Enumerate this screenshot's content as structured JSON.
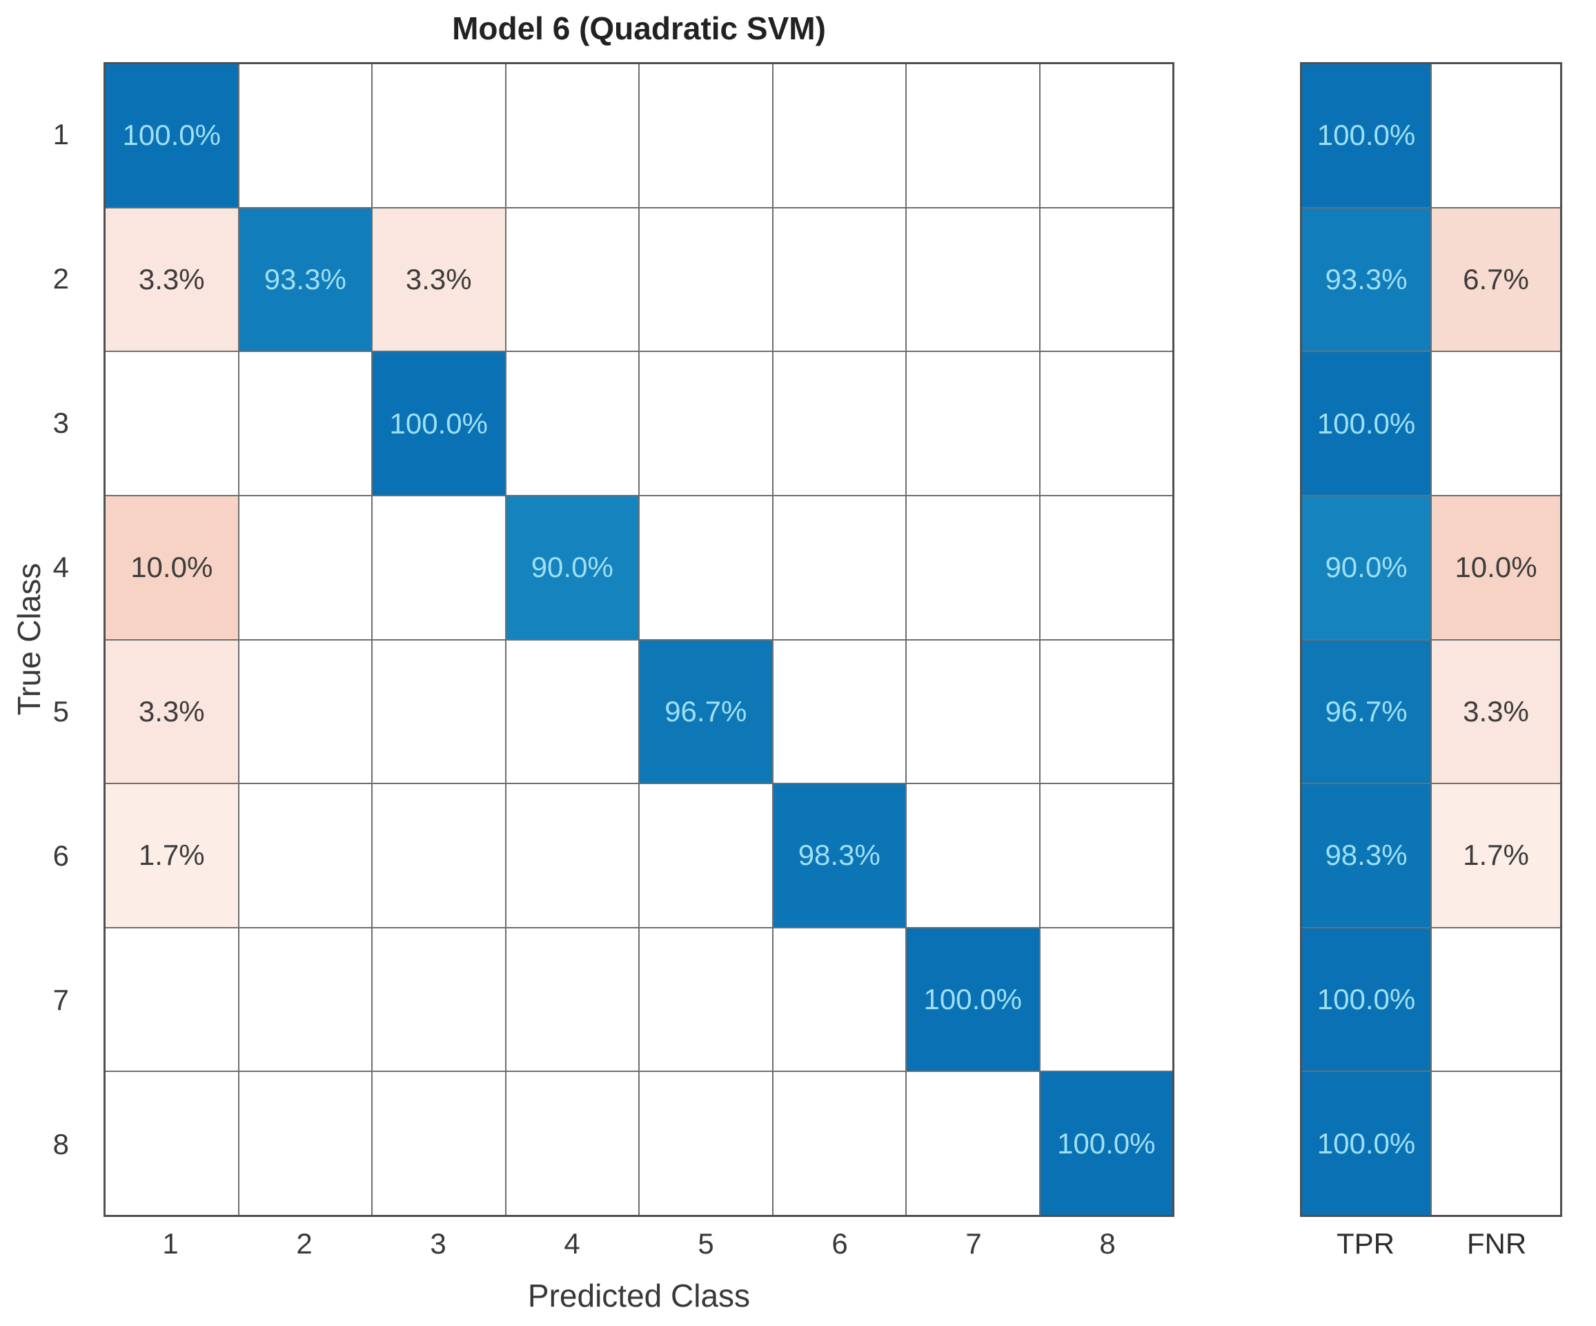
{
  "title": "Model 6 (Quadratic SVM)",
  "axes": {
    "x_label": "Predicted Class",
    "y_label": "True Class",
    "x_ticks": [
      "1",
      "2",
      "3",
      "4",
      "5",
      "6",
      "7",
      "8"
    ],
    "y_ticks": [
      "1",
      "2",
      "3",
      "4",
      "5",
      "6",
      "7",
      "8"
    ]
  },
  "summary_columns": [
    "TPR",
    "FNR"
  ],
  "colors": {
    "diagonal_blue": "#0a72b4",
    "diagonal_blue_light": "#1583bd",
    "miss_pink_strong": "#f7d3c5",
    "cell_text_on_blue": "#9fdff4",
    "cell_text_on_pink": "#3c3c3c",
    "grid_line": "#6e6e6e",
    "grid_border": "#4f4f4f",
    "axis_text": "#383838"
  },
  "chart_data": {
    "type": "heatmap",
    "title": "Model 6 (Quadratic SVM)",
    "xlabel": "Predicted Class",
    "ylabel": "True Class",
    "classes": [
      "1",
      "2",
      "3",
      "4",
      "5",
      "6",
      "7",
      "8"
    ],
    "matrix_percent": [
      [
        100.0,
        null,
        null,
        null,
        null,
        null,
        null,
        null
      ],
      [
        3.3,
        93.3,
        3.3,
        null,
        null,
        null,
        null,
        null
      ],
      [
        null,
        null,
        100.0,
        null,
        null,
        null,
        null,
        null
      ],
      [
        10.0,
        null,
        null,
        90.0,
        null,
        null,
        null,
        null
      ],
      [
        3.3,
        null,
        null,
        null,
        96.7,
        null,
        null,
        null
      ],
      [
        1.7,
        null,
        null,
        null,
        null,
        98.3,
        null,
        null
      ],
      [
        null,
        null,
        null,
        null,
        null,
        null,
        100.0,
        null
      ],
      [
        null,
        null,
        null,
        null,
        null,
        null,
        null,
        100.0
      ]
    ],
    "tpr_percent": [
      100.0,
      93.3,
      100.0,
      90.0,
      96.7,
      98.3,
      100.0,
      100.0
    ],
    "fnr_percent": [
      null,
      6.7,
      null,
      10.0,
      3.3,
      1.7,
      null,
      null
    ],
    "value_format": "one_decimal_percent",
    "legend_position": "none",
    "grid": true
  }
}
